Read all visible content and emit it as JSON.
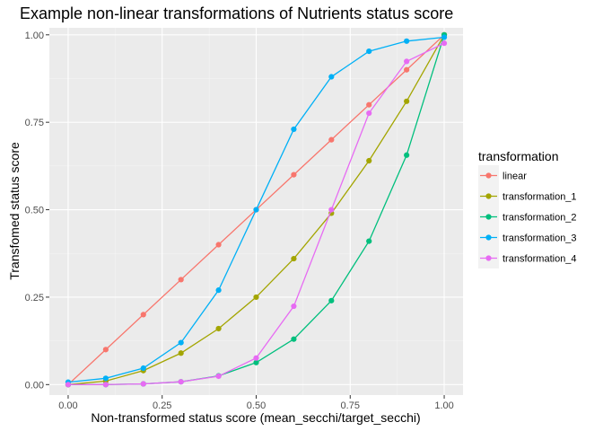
{
  "chart_data": {
    "type": "line",
    "title": "Example non-linear transformations of Nutrients status score",
    "xlabel": "Non-transformed status score (mean_secchi/target_secchi)",
    "ylabel": "Transfomed status score",
    "xlim": [
      -0.05,
      1.05
    ],
    "ylim": [
      -0.03,
      1.02
    ],
    "x_ticks": [
      0,
      0.25,
      0.5,
      0.75,
      1.0
    ],
    "x_tick_labels": [
      "0.00",
      "0.25",
      "0.50",
      "0.75",
      "1.00"
    ],
    "y_ticks": [
      0,
      0.25,
      0.5,
      0.75,
      1.0
    ],
    "y_tick_labels": [
      "0.00",
      "0.25",
      "0.50",
      "0.75",
      "1.00"
    ],
    "grid": true,
    "legend": {
      "title": "transformation",
      "position": "right"
    },
    "x": [
      0,
      0.1,
      0.2,
      0.3,
      0.4,
      0.5,
      0.6,
      0.7,
      0.8,
      0.9,
      1.0
    ],
    "series": [
      {
        "name": "linear",
        "color": "#F8766D",
        "values": [
          0.0,
          0.1,
          0.2,
          0.3,
          0.4,
          0.5,
          0.6,
          0.7,
          0.8,
          0.9,
          1.0
        ]
      },
      {
        "name": "transformation_1",
        "color": "#A3A500",
        "values": [
          0.0,
          0.01,
          0.04,
          0.09,
          0.16,
          0.25,
          0.36,
          0.49,
          0.64,
          0.81,
          1.0
        ]
      },
      {
        "name": "transformation_2",
        "color": "#00BF7D",
        "values": [
          0.0,
          0.0,
          0.002,
          0.008,
          0.025,
          0.063,
          0.13,
          0.24,
          0.41,
          0.656,
          1.0
        ]
      },
      {
        "name": "transformation_3",
        "color": "#00B0F6",
        "values": [
          0.007,
          0.018,
          0.047,
          0.12,
          0.27,
          0.5,
          0.73,
          0.88,
          0.953,
          0.982,
          0.993
        ]
      },
      {
        "name": "transformation_4",
        "color": "#E76BF3",
        "values": [
          0.0,
          0.0,
          0.002,
          0.008,
          0.024,
          0.076,
          0.224,
          0.5,
          0.776,
          0.924,
          0.976
        ]
      }
    ]
  }
}
